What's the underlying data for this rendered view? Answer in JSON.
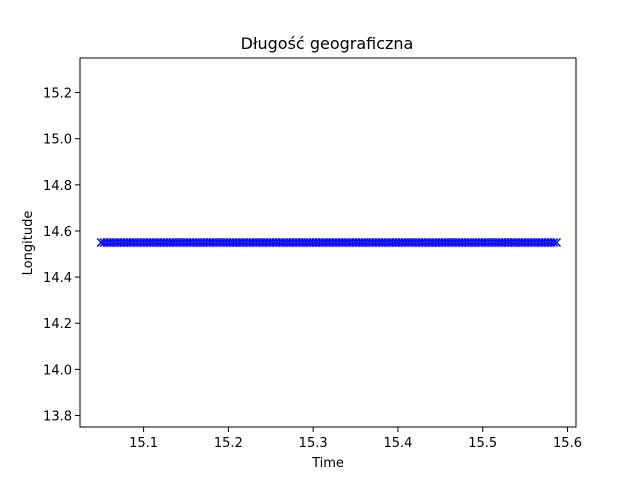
{
  "chart_data": {
    "type": "scatter",
    "title": "Długość geograficzna",
    "xlabel": "Time",
    "ylabel": "Longitude",
    "xlim": [
      15.025,
      15.61
    ],
    "ylim": [
      13.75,
      15.35
    ],
    "xticks": [
      15.1,
      15.2,
      15.3,
      15.4,
      15.5,
      15.6
    ],
    "xtick_labels": [
      "15.1",
      "15.2",
      "15.3",
      "15.4",
      "15.5",
      "15.6"
    ],
    "yticks": [
      13.8,
      14.0,
      14.2,
      14.4,
      14.6,
      14.8,
      15.0,
      15.2
    ],
    "ytick_labels": [
      "13.8",
      "14.0",
      "14.2",
      "14.4",
      "14.6",
      "14.8",
      "15.0",
      "15.2"
    ],
    "grid": false,
    "series": [
      {
        "marker": "x",
        "color": "#0000ff",
        "x_start": 15.05,
        "x_end": 15.587,
        "point_count": 160,
        "y": 14.55
      }
    ]
  }
}
